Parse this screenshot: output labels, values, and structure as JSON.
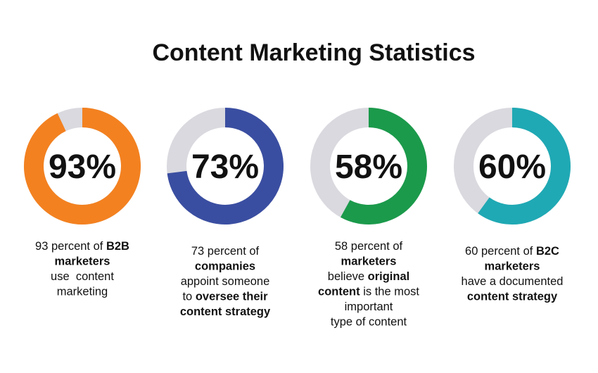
{
  "title": "Content Marketing Statistics",
  "chart_data": [
    {
      "type": "donut",
      "values": [
        93
      ],
      "value_labels": [
        "93%"
      ],
      "color": "#f38120",
      "track_color": "#d9d9df",
      "caption": [
        [
          {
            "text": "93 percent of ",
            "bold": false
          },
          {
            "text": "B2B",
            "bold": true
          }
        ],
        [
          {
            "text": "marketers",
            "bold": true
          }
        ],
        [
          {
            "text": "use  content",
            "bold": false
          }
        ],
        [
          {
            "text": "marketing",
            "bold": false
          }
        ]
      ]
    },
    {
      "type": "donut",
      "values": [
        73
      ],
      "value_labels": [
        "73%"
      ],
      "color": "#3a4ea1",
      "track_color": "#d9d9df",
      "caption": [
        [
          {
            "text": "73 percent of",
            "bold": false
          }
        ],
        [
          {
            "text": "companies",
            "bold": true
          }
        ],
        [
          {
            "text": "appoint someone",
            "bold": false
          }
        ],
        [
          {
            "text": "to ",
            "bold": false
          },
          {
            "text": "oversee their",
            "bold": true
          }
        ],
        [
          {
            "text": "content strategy",
            "bold": true
          }
        ]
      ]
    },
    {
      "type": "donut",
      "values": [
        58
      ],
      "value_labels": [
        "58%"
      ],
      "color": "#1b9a4b",
      "track_color": "#d9d9df",
      "caption": [
        [
          {
            "text": "58 percent of",
            "bold": false
          }
        ],
        [
          {
            "text": "marketers",
            "bold": true
          }
        ],
        [
          {
            "text": "believe ",
            "bold": false
          },
          {
            "text": "original",
            "bold": true
          }
        ],
        [
          {
            "text": "content",
            "bold": true
          },
          {
            "text": " is the most",
            "bold": false
          }
        ],
        [
          {
            "text": "important",
            "bold": false
          }
        ],
        [
          {
            "text": "type of content",
            "bold": false
          }
        ]
      ]
    },
    {
      "type": "donut",
      "values": [
        60
      ],
      "value_labels": [
        "60%"
      ],
      "color": "#1fa9b4",
      "track_color": "#d9d9df",
      "caption": [
        [
          {
            "text": "60 percent of ",
            "bold": false
          },
          {
            "text": "B2C",
            "bold": true
          }
        ],
        [
          {
            "text": "marketers",
            "bold": true
          }
        ],
        [
          {
            "text": "have a documented",
            "bold": false
          }
        ],
        [
          {
            "text": "content strategy",
            "bold": true
          }
        ]
      ]
    }
  ]
}
